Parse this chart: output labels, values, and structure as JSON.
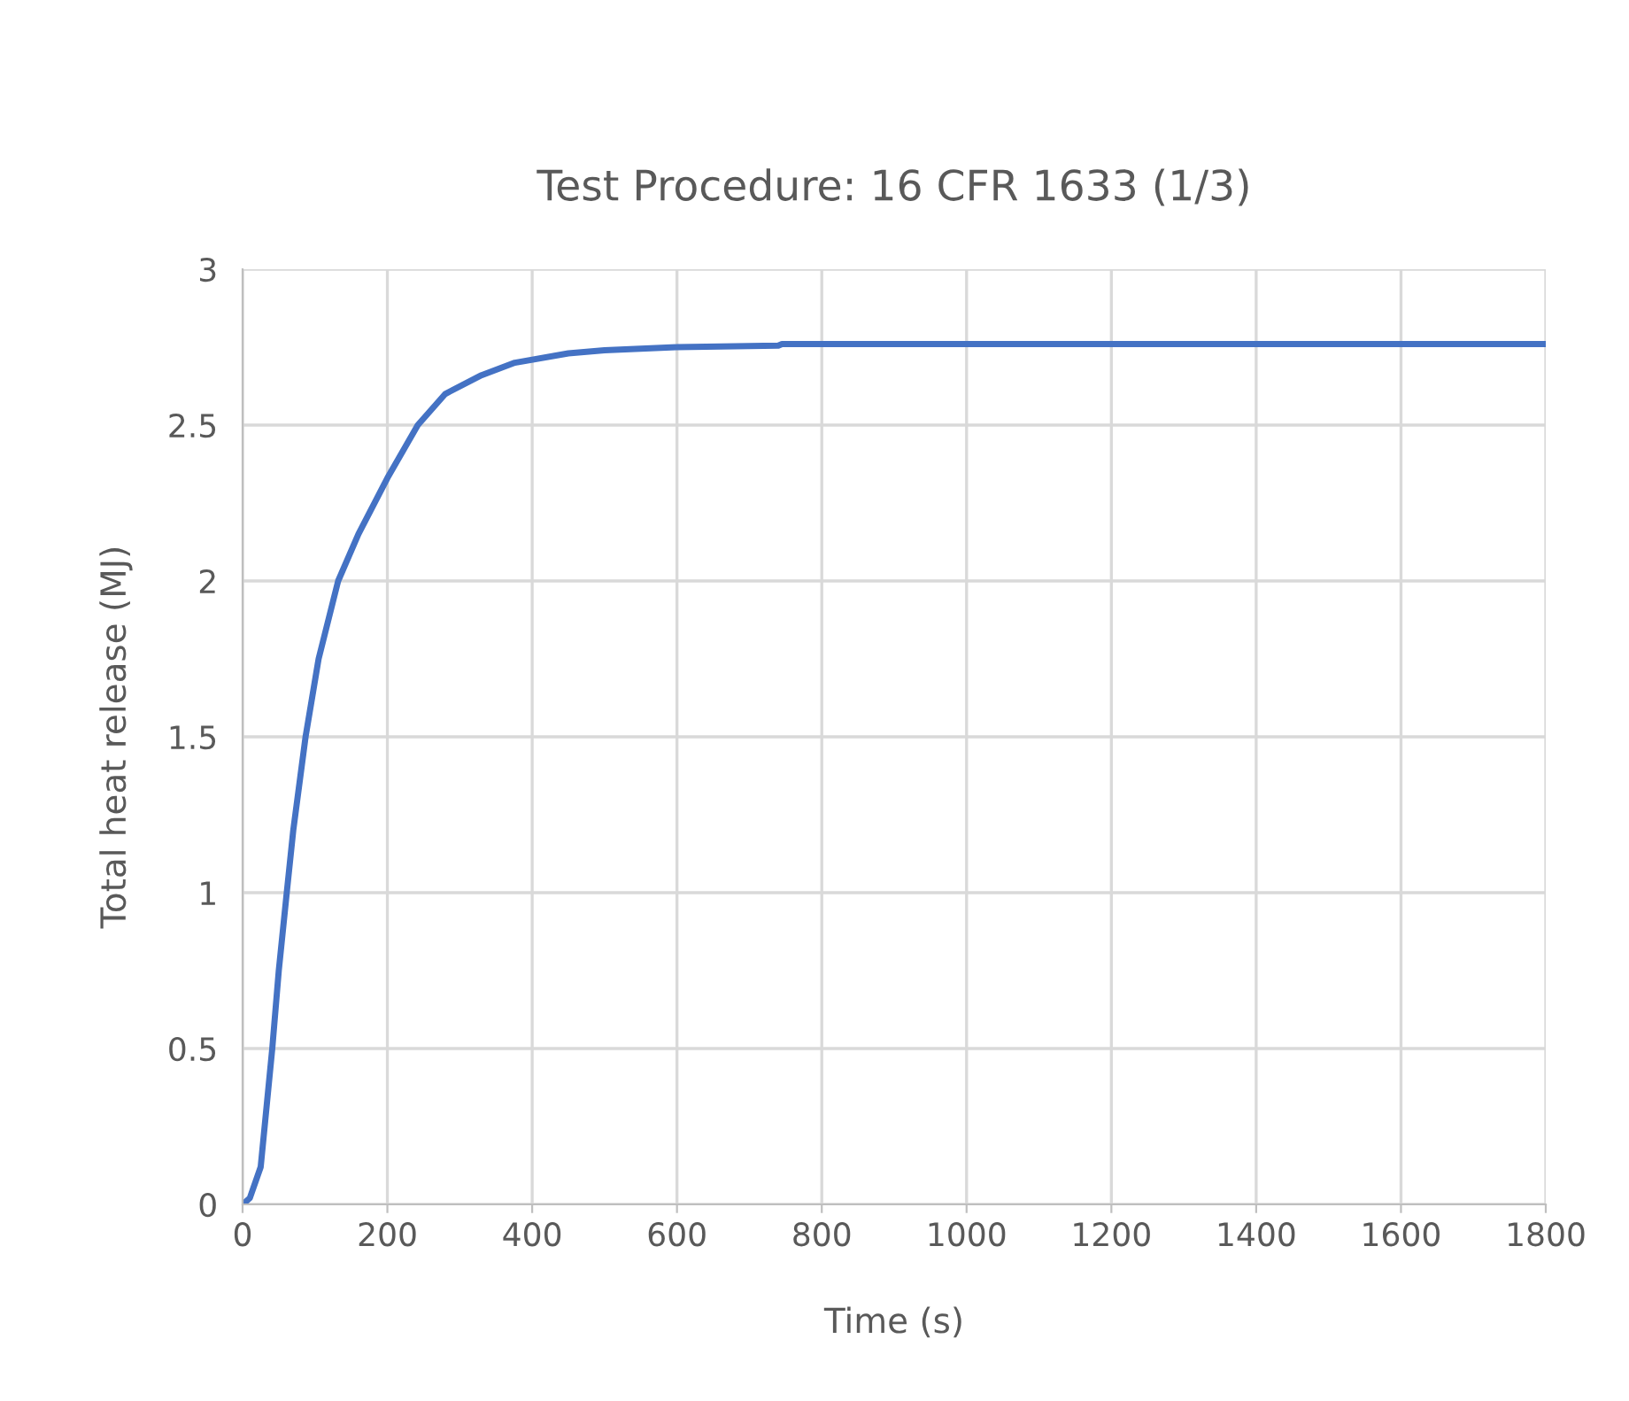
{
  "chart_data": {
    "type": "line",
    "title": "Test Procedure: 16 CFR 1633 (1/3)",
    "xlabel": "Time (s)",
    "ylabel": "Total heat release (MJ)",
    "series": [
      {
        "color": "#4472c4",
        "x": [
          0,
          10,
          25,
          41,
          50,
          61,
          70,
          87,
          105,
          132,
          160,
          200,
          242,
          280,
          330,
          376,
          450,
          500,
          600,
          740,
          745,
          1800
        ],
        "values": [
          0,
          0.02,
          0.12,
          0.5,
          0.75,
          1.0,
          1.2,
          1.5,
          1.75,
          2.0,
          2.15,
          2.33,
          2.5,
          2.6,
          2.66,
          2.7,
          2.73,
          2.74,
          2.75,
          2.755,
          2.76,
          2.76
        ]
      }
    ],
    "xlim": [
      0,
      1800
    ],
    "xticks": [
      0,
      200,
      400,
      600,
      800,
      1000,
      1200,
      1400,
      1600,
      1800
    ],
    "ylim": [
      0,
      3
    ],
    "yticks": [
      0,
      0.5,
      1,
      1.5,
      2,
      2.5,
      3
    ],
    "grid": true,
    "line_style": "solid",
    "marker": "none"
  }
}
